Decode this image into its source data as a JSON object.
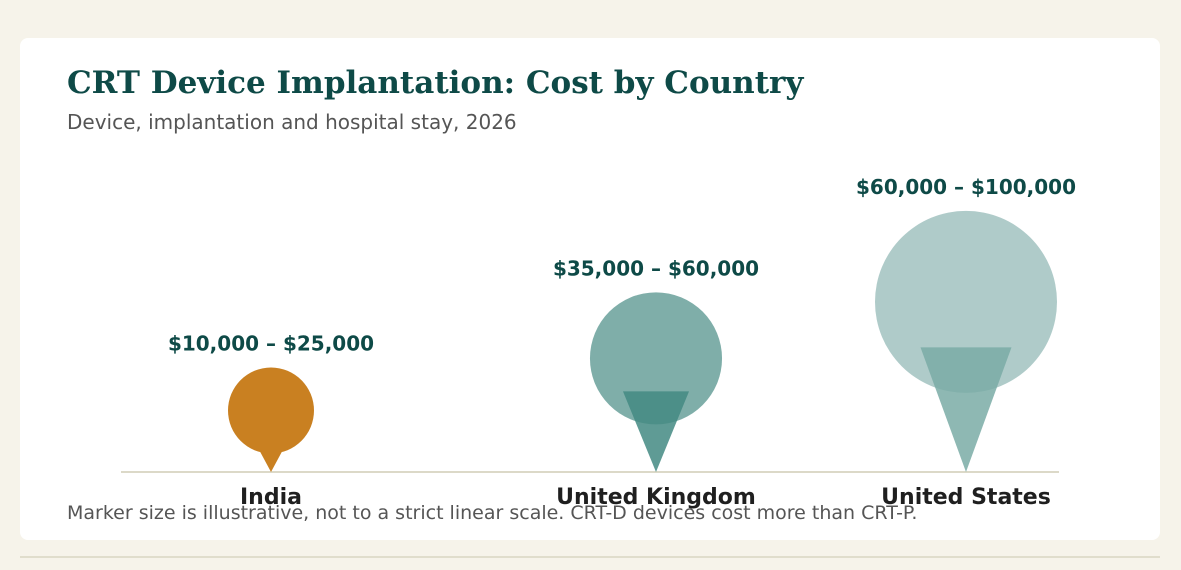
{
  "title": "CRT Device Implantation: Cost by Country",
  "subtitle": "Device, implantation and hospital stay, 2026",
  "footnote": "Marker size is illustrative, not to a strict linear scale. CRT-D devices cost more than CRT-P.",
  "chart_data": {
    "type": "bar",
    "marker": "map-pin",
    "categories": [
      "India",
      "United Kingdom",
      "United States"
    ],
    "series": [
      {
        "range_low": [
          10000,
          35000,
          60000
        ],
        "range_high": [
          25000,
          60000,
          100000
        ],
        "labels": [
          "$10,000 – $25,000",
          "$35,000 – $60,000",
          "$60,000 – $100,000"
        ]
      }
    ],
    "colors": [
      "#c98021",
      "#7faea9",
      "#afcbc9"
    ],
    "tip_colors": [
      "#c98021",
      "#438a82",
      "#7aaba6"
    ],
    "ylim": [
      0,
      100000
    ],
    "grid": false,
    "legend": "none"
  }
}
